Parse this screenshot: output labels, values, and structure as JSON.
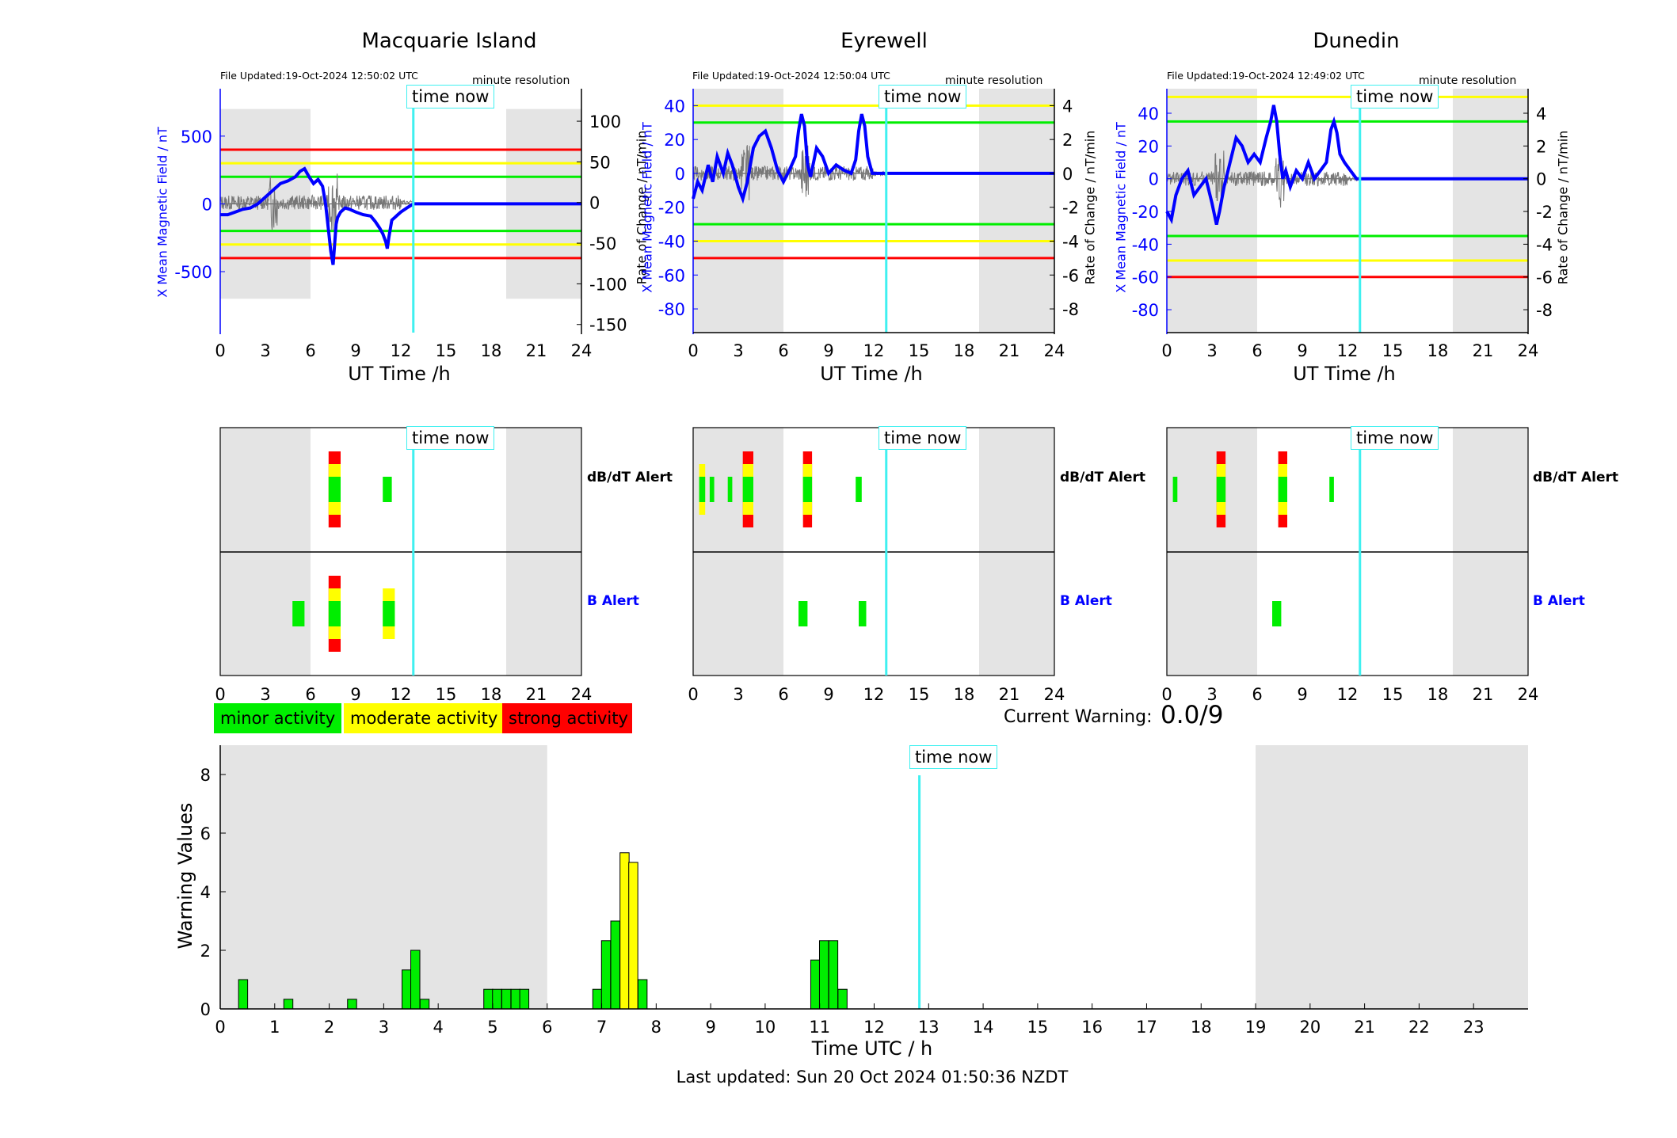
{
  "colors": {
    "minor": "#00ee00",
    "moderate": "#ffff00",
    "strong": "#ff0000",
    "now": "#3ff0f0",
    "field": "#0000ff",
    "night": "#e4e4e4"
  },
  "stations": [
    {
      "name": "Macquarie Island",
      "file_updated": "File Updated:19-Oct-2024 12:50:02 UTC",
      "left_ticks": [
        -500,
        0,
        500
      ],
      "right_ticks": [
        -150,
        -100,
        -50,
        0,
        50,
        100
      ]
    },
    {
      "name": "Eyrewell",
      "file_updated": "File Updated:19-Oct-2024 12:50:04 UTC",
      "left_ticks": [
        -80,
        -60,
        -40,
        -20,
        0,
        20,
        40
      ],
      "right_ticks": [
        -8,
        -6,
        -4,
        -2,
        0,
        2,
        4
      ]
    },
    {
      "name": "Dunedin",
      "file_updated": "File Updated:19-Oct-2024 12:49:02 UTC",
      "left_ticks": [
        -80,
        -60,
        -40,
        -20,
        0,
        20,
        40
      ],
      "right_ticks": [
        -8,
        -6,
        -4,
        -2,
        0,
        2,
        4
      ]
    }
  ],
  "labels": {
    "resolution": "minute resolution",
    "left_axis": "X Mean Magnetic Field / nT",
    "right_axis": "Rate of Change / nT/min",
    "ut_time": "UT Time /h",
    "time_now": "time now",
    "dbdt_alert": "dB/dT Alert",
    "b_alert": "B Alert",
    "minor": "minor activity",
    "moderate": "moderate activity",
    "strong": "strong activity",
    "current_warning_label": "Current Warning:",
    "current_warning_value": "0.0/9",
    "warning_ylabel": "Warning Values",
    "warning_xlabel": "Time UTC / h",
    "last_updated": "Last updated: Sun 20 Oct 2024 01:50:36 NZDT"
  },
  "chart_data": [
    {
      "type": "line",
      "station": "Macquarie Island",
      "xlim": [
        0,
        24
      ],
      "x_ticks": [
        0,
        3,
        6,
        9,
        12,
        15,
        18,
        21,
        24
      ],
      "ylim_left": [
        -950,
        850
      ],
      "ylim_right": [
        -160,
        140
      ],
      "time_now": 12.83,
      "night": [
        [
          0,
          6
        ],
        [
          19,
          24
        ]
      ],
      "thresholds": [
        {
          "value": 400,
          "level": "strong"
        },
        {
          "value": 300,
          "level": "moderate"
        },
        {
          "value": 200,
          "level": "minor"
        },
        {
          "value": -200,
          "level": "minor"
        },
        {
          "value": -300,
          "level": "moderate"
        },
        {
          "value": -400,
          "level": "strong"
        }
      ],
      "series": [
        {
          "x": [
            0,
            0.5,
            1,
            1.5,
            2,
            2.5,
            3,
            3.5,
            4,
            4.5,
            5,
            5.3,
            5.6,
            5.9,
            6.2,
            6.5,
            6.8,
            7.0,
            7.2,
            7.35,
            7.5,
            7.6,
            7.7,
            7.8,
            8.0,
            8.3,
            8.6,
            9,
            9.5,
            10,
            10.3,
            10.6,
            10.8,
            11.0,
            11.1,
            11.2,
            11.4,
            11.6,
            11.8,
            12,
            12.4,
            12.83,
            24
          ],
          "y": [
            -80,
            -80,
            -60,
            -40,
            -30,
            0,
            50,
            100,
            150,
            170,
            200,
            240,
            260,
            200,
            150,
            180,
            130,
            0,
            -200,
            -350,
            -450,
            -300,
            -150,
            -100,
            -60,
            -30,
            -40,
            -60,
            -80,
            -90,
            -130,
            -180,
            -220,
            -280,
            -330,
            -250,
            -120,
            -100,
            -80,
            -60,
            -30,
            0,
            0
          ]
        }
      ]
    },
    {
      "type": "line",
      "station": "Eyrewell",
      "xlim": [
        0,
        24
      ],
      "x_ticks": [
        0,
        3,
        6,
        9,
        12,
        15,
        18,
        21,
        24
      ],
      "ylim_left": [
        -94,
        50
      ],
      "ylim_right": [
        -9.4,
        5
      ],
      "time_now": 12.83,
      "night": [
        [
          0,
          6
        ],
        [
          19,
          24
        ]
      ],
      "thresholds": [
        {
          "value": 40,
          "level": "moderate"
        },
        {
          "value": 30,
          "level": "minor"
        },
        {
          "value": -30,
          "level": "minor"
        },
        {
          "value": -40,
          "level": "moderate"
        },
        {
          "value": -50,
          "level": "strong"
        }
      ],
      "series": [
        {
          "x": [
            0,
            0.3,
            0.6,
            1,
            1.3,
            1.6,
            2,
            2.3,
            2.6,
            3,
            3.3,
            3.6,
            4,
            4.4,
            4.8,
            5.2,
            5.6,
            6,
            6.4,
            6.8,
            7.0,
            7.2,
            7.4,
            7.6,
            7.8,
            8.2,
            8.6,
            9,
            9.5,
            10,
            10.5,
            10.8,
            11.0,
            11.2,
            11.4,
            11.6,
            11.9,
            12.83,
            24
          ],
          "y": [
            -15,
            -5,
            -10,
            5,
            -5,
            10,
            0,
            12,
            5,
            -8,
            -15,
            -5,
            15,
            22,
            25,
            15,
            2,
            -5,
            2,
            10,
            25,
            35,
            28,
            5,
            -2,
            15,
            10,
            0,
            5,
            2,
            0,
            8,
            25,
            35,
            28,
            10,
            0,
            0,
            0
          ]
        }
      ]
    },
    {
      "type": "line",
      "station": "Dunedin",
      "xlim": [
        0,
        24
      ],
      "x_ticks": [
        0,
        3,
        6,
        9,
        12,
        15,
        18,
        21,
        24
      ],
      "ylim_left": [
        -94,
        55
      ],
      "ylim_right": [
        -9.4,
        5.5
      ],
      "time_now": 12.83,
      "night": [
        [
          0,
          6
        ],
        [
          19,
          24
        ]
      ],
      "thresholds": [
        {
          "value": 50,
          "level": "moderate"
        },
        {
          "value": 35,
          "level": "minor"
        },
        {
          "value": -35,
          "level": "minor"
        },
        {
          "value": -50,
          "level": "moderate"
        },
        {
          "value": -60,
          "level": "strong"
        }
      ],
      "series": [
        {
          "x": [
            0,
            0.3,
            0.6,
            1,
            1.4,
            1.8,
            2.2,
            2.6,
            3,
            3.3,
            3.5,
            3.8,
            4.2,
            4.6,
            5,
            5.4,
            5.8,
            6.2,
            6.6,
            6.9,
            7.1,
            7.3,
            7.5,
            7.7,
            7.9,
            8.2,
            8.6,
            9,
            9.4,
            9.8,
            10.2,
            10.6,
            10.9,
            11.1,
            11.3,
            11.5,
            11.8,
            12.2,
            12.6,
            12.83,
            24
          ],
          "y": [
            -20,
            -25,
            -10,
            0,
            5,
            -10,
            -5,
            0,
            -15,
            -28,
            -20,
            -5,
            10,
            25,
            20,
            10,
            15,
            10,
            25,
            35,
            45,
            35,
            15,
            0,
            5,
            -5,
            5,
            0,
            10,
            0,
            5,
            10,
            30,
            35,
            28,
            15,
            10,
            5,
            0,
            0,
            0
          ]
        }
      ]
    },
    {
      "type": "heatmap",
      "station": "Macquarie Island",
      "xlim": [
        0,
        24
      ],
      "x_ticks": [
        0,
        3,
        6,
        9,
        12,
        15,
        18,
        21,
        24
      ],
      "time_now": 12.83,
      "night": [
        [
          0,
          6
        ],
        [
          19,
          24
        ]
      ],
      "rows": [
        "dB/dT Alert",
        "B Alert"
      ],
      "dbdt": [
        {
          "x": 7.2,
          "w": 0.8,
          "level": "strong"
        },
        {
          "x": 10.8,
          "w": 0.6,
          "level": "minor"
        }
      ],
      "b": [
        {
          "x": 4.8,
          "w": 0.8,
          "level": "minor"
        },
        {
          "x": 7.2,
          "w": 0.8,
          "level": "strong"
        },
        {
          "x": 10.8,
          "w": 0.8,
          "level": "moderate"
        }
      ]
    },
    {
      "type": "heatmap",
      "station": "Eyrewell",
      "xlim": [
        0,
        24
      ],
      "x_ticks": [
        0,
        3,
        6,
        9,
        12,
        15,
        18,
        21,
        24
      ],
      "time_now": 12.83,
      "night": [
        [
          0,
          6
        ],
        [
          19,
          24
        ]
      ],
      "rows": [
        "dB/dT Alert",
        "B Alert"
      ],
      "dbdt": [
        {
          "x": 0.4,
          "w": 0.4,
          "level": "moderate"
        },
        {
          "x": 1.1,
          "w": 0.3,
          "level": "minor"
        },
        {
          "x": 2.3,
          "w": 0.3,
          "level": "minor"
        },
        {
          "x": 3.3,
          "w": 0.7,
          "level": "strong"
        },
        {
          "x": 7.3,
          "w": 0.6,
          "level": "strong"
        },
        {
          "x": 10.8,
          "w": 0.4,
          "level": "minor"
        }
      ],
      "b": [
        {
          "x": 7.0,
          "w": 0.6,
          "level": "minor"
        },
        {
          "x": 11.0,
          "w": 0.5,
          "level": "minor"
        }
      ]
    },
    {
      "type": "heatmap",
      "station": "Dunedin",
      "xlim": [
        0,
        24
      ],
      "x_ticks": [
        0,
        3,
        6,
        9,
        12,
        15,
        18,
        21,
        24
      ],
      "time_now": 12.83,
      "night": [
        [
          0,
          6
        ],
        [
          19,
          24
        ]
      ],
      "rows": [
        "dB/dT Alert",
        "B Alert"
      ],
      "dbdt": [
        {
          "x": 0.4,
          "w": 0.3,
          "level": "minor"
        },
        {
          "x": 3.3,
          "w": 0.6,
          "level": "strong"
        },
        {
          "x": 7.4,
          "w": 0.6,
          "level": "strong"
        },
        {
          "x": 10.8,
          "w": 0.3,
          "level": "minor"
        }
      ],
      "b": [
        {
          "x": 7.0,
          "w": 0.6,
          "level": "minor"
        }
      ]
    },
    {
      "type": "bar",
      "xlabel": "Time UTC / h",
      "ylabel": "Warning Values",
      "xlim": [
        0,
        24
      ],
      "ylim": [
        0,
        9
      ],
      "x_ticks": [
        0,
        1,
        2,
        3,
        4,
        5,
        6,
        7,
        8,
        9,
        10,
        11,
        12,
        13,
        14,
        15,
        16,
        17,
        18,
        19,
        20,
        21,
        22,
        23
      ],
      "y_ticks": [
        0,
        2,
        4,
        6,
        8
      ],
      "time_now": 12.83,
      "night": [
        [
          0,
          6
        ],
        [
          19,
          24
        ]
      ],
      "x": [
        0.42,
        1.25,
        2.42,
        3.42,
        3.58,
        3.75,
        4.92,
        5.08,
        5.25,
        5.42,
        5.58,
        6.92,
        7.08,
        7.25,
        7.42,
        7.58,
        7.75,
        10.92,
        11.08,
        11.25,
        11.42
      ],
      "values": [
        1,
        0.33,
        0.33,
        1.33,
        2,
        0.33,
        0.67,
        0.67,
        0.67,
        0.67,
        0.67,
        0.67,
        2.33,
        3,
        5.33,
        5,
        1,
        1.67,
        2.33,
        2.33,
        0.67
      ],
      "levels": [
        "minor",
        "minor",
        "minor",
        "minor",
        "minor",
        "minor",
        "minor",
        "minor",
        "minor",
        "minor",
        "minor",
        "minor",
        "minor",
        "minor",
        "moderate",
        "moderate",
        "minor",
        "minor",
        "minor",
        "minor",
        "minor"
      ]
    }
  ]
}
